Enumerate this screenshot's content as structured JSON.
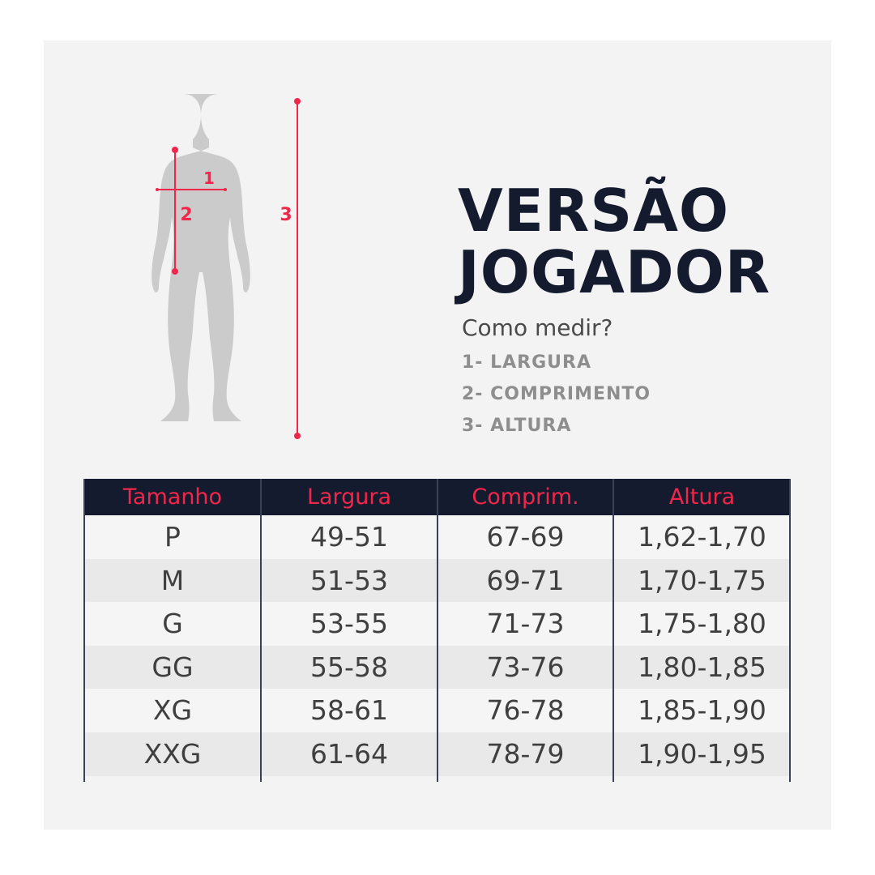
{
  "title": {
    "line1": "VERSÃO",
    "line2": "JOGADOR"
  },
  "how_to": {
    "heading": "Como medir?",
    "steps": [
      "1- LARGURA",
      "2- COMPRIMENTO",
      "3- ALTURA"
    ]
  },
  "figure": {
    "labels": [
      "1",
      "2",
      "3"
    ],
    "accent_color": "#f0264a",
    "silhouette_color": "#cbcbcb"
  },
  "table": {
    "headers": [
      "Tamanho",
      "Largura",
      "Comprim.",
      "Altura"
    ],
    "rows": [
      [
        "P",
        "49-51",
        "67-69",
        "1,62-1,70"
      ],
      [
        "M",
        "51-53",
        "69-71",
        "1,70-1,75"
      ],
      [
        "G",
        "53-55",
        "71-73",
        "1,75-1,80"
      ],
      [
        "GG",
        "55-58",
        "73-76",
        "1,80-1,85"
      ],
      [
        "XG",
        "58-61",
        "76-78",
        "1,85-1,90"
      ],
      [
        "XXG",
        "61-64",
        "78-79",
        "1,90-1,95"
      ]
    ],
    "header_bg": "#141b2e",
    "header_text_color": "#f0264a"
  }
}
